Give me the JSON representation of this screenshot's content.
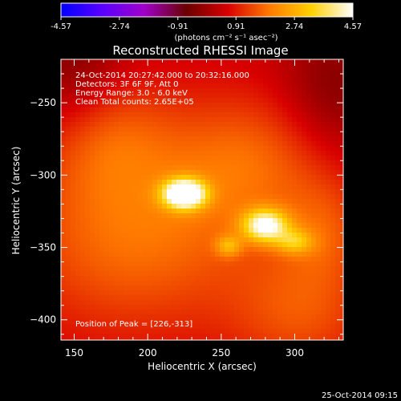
{
  "colorbar": {
    "ticks": [
      "-4.57",
      "-2.74",
      "-0.91",
      "0.91",
      "2.74",
      "4.57"
    ],
    "min": -4.57,
    "max": 4.57,
    "colors": [
      "#0000ff",
      "#5a00ff",
      "#a000c8",
      "#6a0000",
      "#d80000",
      "#ff7a00",
      "#ffd000",
      "#ffffff"
    ],
    "unit_label": "(photons cm⁻² s⁻¹ asec⁻²)"
  },
  "chart_data": {
    "type": "heatmap",
    "title": "Reconstructed RHESSI Image",
    "xlabel": "Heliocentric X (arcsec)",
    "ylabel": "Heliocentric Y (arcsec)",
    "xlim": [
      141,
      333
    ],
    "ylim": [
      -414,
      -220
    ],
    "x_ticks": [
      150,
      200,
      250,
      300
    ],
    "y_ticks": [
      -250,
      -300,
      -350,
      -400
    ],
    "annotations": [
      "24-Oct-2014 20:27:42.000 to 20:32:16.000",
      "Detectors: 3F 6F 9F, Att 0",
      "Energy Range: 3.0 - 6.0 keV",
      "Clean    Total counts: 2.65E+05"
    ],
    "peak_label": "Position of Peak = [226,-313]",
    "peak": [
      226,
      -313
    ],
    "sources": [
      {
        "x": 225,
        "y": -313,
        "sx": 10,
        "sy": 7,
        "amp": 4.6
      },
      {
        "x": 280,
        "y": -335,
        "sx": 11,
        "sy": 8,
        "amp": 3.4
      },
      {
        "x": 300,
        "y": -346,
        "sx": 9,
        "sy": 6,
        "amp": 1.6
      },
      {
        "x": 255,
        "y": -349,
        "sx": 6,
        "sy": 5,
        "amp": 1.4
      },
      {
        "x": 190,
        "y": -340,
        "sx": 60,
        "sy": 50,
        "amp": 1.4
      },
      {
        "x": 275,
        "y": -290,
        "sx": 45,
        "sy": 35,
        "amp": 1.1
      },
      {
        "x": 170,
        "y": -270,
        "sx": 30,
        "sy": 30,
        "amp": 0.9
      },
      {
        "x": 305,
        "y": -395,
        "sx": 35,
        "sy": 30,
        "amp": 1.0
      },
      {
        "x": 320,
        "y": -340,
        "sx": 20,
        "sy": 25,
        "amp": 0.8
      }
    ],
    "background": 0.45,
    "dark_regions": [
      {
        "x": 150,
        "y": -228,
        "sx": 25,
        "sy": 35,
        "amp": -0.9
      },
      {
        "x": 325,
        "y": -245,
        "sx": 25,
        "sy": 35,
        "amp": -0.9
      }
    ]
  },
  "footer_date": "25-Oct-2014 09:15"
}
